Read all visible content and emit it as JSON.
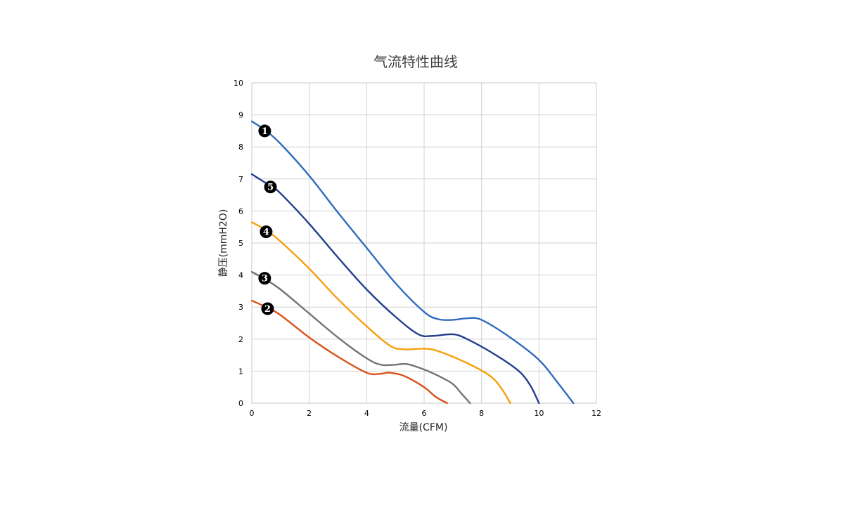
{
  "chart_data": {
    "type": "line",
    "title": "气流特性曲线",
    "xlabel": "流量(CFM)",
    "ylabel": "静压(mmH2O)",
    "xlim": [
      0,
      12
    ],
    "ylim": [
      0,
      10
    ],
    "xticks": [
      "0",
      "2",
      "4",
      "6",
      "8",
      "10",
      "12"
    ],
    "yticks": [
      "0",
      "1",
      "2",
      "3",
      "4",
      "5",
      "6",
      "7",
      "8",
      "9",
      "10"
    ],
    "grid": true,
    "series": [
      {
        "name": "1",
        "color": "#2f6bbf",
        "points": [
          [
            0,
            8.8
          ],
          [
            0.5,
            8.5
          ],
          [
            1.0,
            8.1
          ],
          [
            2.0,
            7.1
          ],
          [
            3.0,
            5.95
          ],
          [
            4.0,
            4.85
          ],
          [
            5.0,
            3.75
          ],
          [
            6.0,
            2.85
          ],
          [
            6.5,
            2.62
          ],
          [
            7.0,
            2.6
          ],
          [
            7.5,
            2.65
          ],
          [
            8.0,
            2.6
          ],
          [
            9.0,
            2.05
          ],
          [
            10.0,
            1.35
          ],
          [
            10.6,
            0.7
          ],
          [
            11.2,
            0.0
          ]
        ]
      },
      {
        "name": "5",
        "color": "#223f8c",
        "points": [
          [
            0,
            7.15
          ],
          [
            0.7,
            6.75
          ],
          [
            1.0,
            6.55
          ],
          [
            2.0,
            5.6
          ],
          [
            3.0,
            4.55
          ],
          [
            4.0,
            3.55
          ],
          [
            5.0,
            2.7
          ],
          [
            5.8,
            2.15
          ],
          [
            6.3,
            2.1
          ],
          [
            7.0,
            2.15
          ],
          [
            7.5,
            2.0
          ],
          [
            8.5,
            1.5
          ],
          [
            9.3,
            1.0
          ],
          [
            9.7,
            0.55
          ],
          [
            10.0,
            0.0
          ]
        ]
      },
      {
        "name": "4",
        "color": "#f5a00f",
        "points": [
          [
            0,
            5.65
          ],
          [
            0.5,
            5.4
          ],
          [
            1.0,
            5.05
          ],
          [
            2.0,
            4.2
          ],
          [
            3.0,
            3.25
          ],
          [
            4.0,
            2.4
          ],
          [
            4.8,
            1.8
          ],
          [
            5.3,
            1.68
          ],
          [
            6.0,
            1.7
          ],
          [
            6.5,
            1.62
          ],
          [
            7.5,
            1.25
          ],
          [
            8.3,
            0.85
          ],
          [
            8.7,
            0.45
          ],
          [
            9.0,
            0.0
          ]
        ]
      },
      {
        "name": "3",
        "color": "#737373",
        "points": [
          [
            0,
            4.1
          ],
          [
            0.5,
            3.85
          ],
          [
            1.0,
            3.55
          ],
          [
            2.0,
            2.8
          ],
          [
            3.0,
            2.05
          ],
          [
            4.0,
            1.4
          ],
          [
            4.5,
            1.2
          ],
          [
            5.0,
            1.2
          ],
          [
            5.4,
            1.22
          ],
          [
            6.0,
            1.05
          ],
          [
            6.5,
            0.85
          ],
          [
            7.0,
            0.6
          ],
          [
            7.3,
            0.3
          ],
          [
            7.6,
            0.0
          ]
        ]
      },
      {
        "name": "2",
        "color": "#d95319",
        "points": [
          [
            0,
            3.2
          ],
          [
            0.5,
            3.0
          ],
          [
            1.0,
            2.75
          ],
          [
            2.0,
            2.05
          ],
          [
            3.0,
            1.45
          ],
          [
            4.0,
            0.95
          ],
          [
            4.5,
            0.92
          ],
          [
            4.8,
            0.95
          ],
          [
            5.3,
            0.85
          ],
          [
            6.0,
            0.5
          ],
          [
            6.4,
            0.2
          ],
          [
            6.8,
            0.0
          ]
        ]
      }
    ],
    "markers": [
      {
        "label": "❶",
        "series": "1",
        "x": 0.45,
        "y": 8.5
      },
      {
        "label": "❺",
        "series": "5",
        "x": 0.65,
        "y": 6.75
      },
      {
        "label": "❹",
        "series": "4",
        "x": 0.5,
        "y": 5.35
      },
      {
        "label": "❸",
        "series": "3",
        "x": 0.45,
        "y": 3.9
      },
      {
        "label": "❷",
        "series": "2",
        "x": 0.55,
        "y": 2.95
      }
    ]
  }
}
